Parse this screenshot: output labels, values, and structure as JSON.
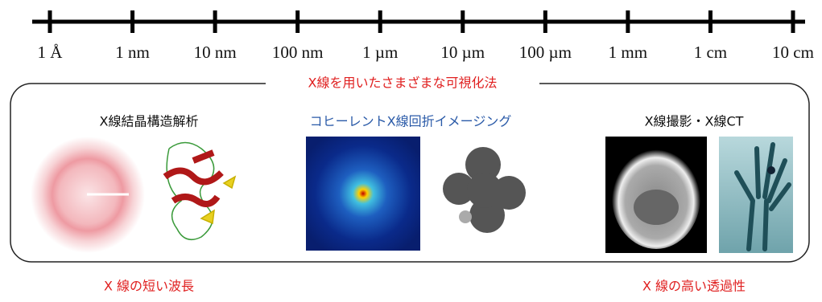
{
  "scale": {
    "labels": [
      "1 Å",
      "1 nm",
      "10 nm",
      "100 nm",
      "1 µm",
      "10 µm",
      "100 µm",
      "1 mm",
      "1 cm",
      "10 cm"
    ]
  },
  "box": {
    "title": "X線を用いたさまざまな可視化法"
  },
  "sections": [
    {
      "title": "X線結晶構造解析",
      "caption": "X 線の短い波長"
    },
    {
      "title": "コヒーレントX線回折イメージング"
    },
    {
      "title": "X線撮影・X線CT",
      "caption": "X 線の高い透過性"
    }
  ]
}
